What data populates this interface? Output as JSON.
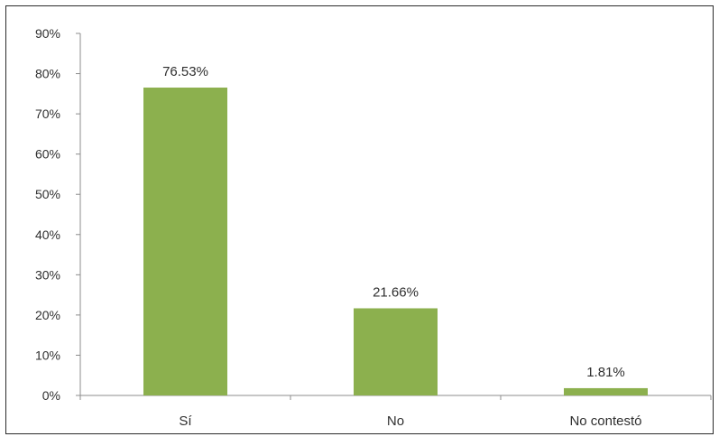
{
  "chart_data": {
    "type": "bar",
    "categories": [
      "Sí",
      "No",
      "No contestó"
    ],
    "values": [
      76.53,
      21.66,
      1.81
    ],
    "data_labels": [
      "76.53%",
      "21.66%",
      "1.81%"
    ],
    "y_tick_labels": [
      "0%",
      "10%",
      "20%",
      "30%",
      "40%",
      "50%",
      "60%",
      "70%",
      "80%",
      "90%"
    ],
    "y_ticks": [
      0,
      10,
      20,
      30,
      40,
      50,
      60,
      70,
      80,
      90
    ],
    "ylim": [
      0,
      90
    ],
    "title": "",
    "xlabel": "",
    "ylabel": "",
    "grid": false,
    "legend": "none",
    "colors": {
      "bar": "#8cb04e",
      "axis": "#8c8c8c",
      "text": "#2f2f2f"
    }
  }
}
